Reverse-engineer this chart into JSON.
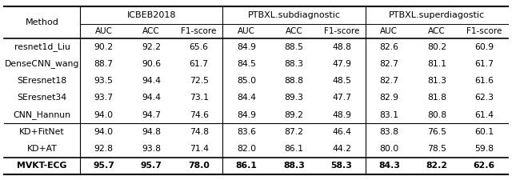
{
  "col_groups": [
    "ICBEB2018",
    "PTBXL.subdiagnostic",
    "PTBXL.superdiagostic"
  ],
  "sub_cols": [
    "AUC",
    "ACC",
    "F1-score"
  ],
  "method_col": "Method",
  "methods": [
    "resnet1d_Liu",
    "DenseCNN_wang",
    "SEresnet18",
    "SEresnet34",
    "CNN_Hannun",
    "KD+FitNet",
    "KD+AT",
    "MVKT-ECG"
  ],
  "data": [
    [
      "90.2",
      "92.2",
      "65.6",
      "84.9",
      "88.5",
      "48.8",
      "82.6",
      "80.2",
      "60.9"
    ],
    [
      "88.7",
      "90.6",
      "61.7",
      "84.5",
      "88.3",
      "47.9",
      "82.7",
      "81.1",
      "61.7"
    ],
    [
      "93.5",
      "94.4",
      "72.5",
      "85.0",
      "88.8",
      "48.5",
      "82.7",
      "81.3",
      "61.6"
    ],
    [
      "93.7",
      "94.4",
      "73.1",
      "84.4",
      "89.3",
      "47.7",
      "82.9",
      "81.8",
      "62.3"
    ],
    [
      "94.0",
      "94.7",
      "74.6",
      "84.9",
      "89.2",
      "48.9",
      "83.1",
      "80.8",
      "61.4"
    ],
    [
      "94.0",
      "94.8",
      "74.8",
      "83.6",
      "87.2",
      "46.4",
      "83.8",
      "76.5",
      "60.1"
    ],
    [
      "92.8",
      "93.8",
      "71.4",
      "82.0",
      "86.1",
      "44.2",
      "80.0",
      "78.5",
      "59.8"
    ],
    [
      "95.7",
      "95.7",
      "78.0",
      "86.1",
      "88.3",
      "58.3",
      "84.3",
      "82.2",
      "62.6"
    ]
  ],
  "bold_rows": [
    7
  ],
  "bg_color": "#ffffff",
  "font_size": 7.8,
  "header_font_size": 8.0
}
